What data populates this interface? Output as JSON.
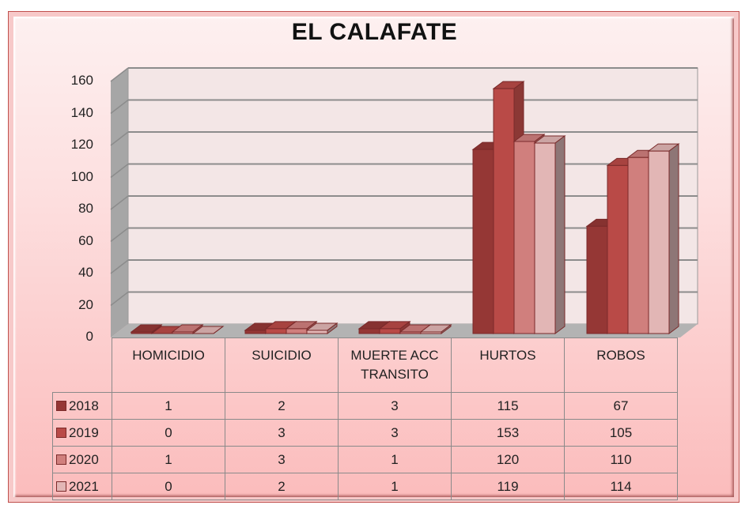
{
  "title": "EL CALAFATE",
  "y_axis": {
    "ticks": [
      "0",
      "20",
      "40",
      "60",
      "80",
      "100",
      "120",
      "140",
      "160"
    ]
  },
  "table": {
    "categories": [
      "HOMICIDIO",
      "SUICIDIO",
      "MUERTE ACC TRANSITO",
      "HURTOS",
      "ROBOS"
    ],
    "category_lines": [
      [
        "HOMICIDIO"
      ],
      [
        "SUICIDIO"
      ],
      [
        "MUERTE ACC",
        "TRANSITO"
      ],
      [
        "HURTOS"
      ],
      [
        "ROBOS"
      ]
    ],
    "rows": [
      {
        "label": "2018",
        "color": "#953735",
        "values": [
          "1",
          "2",
          "3",
          "115",
          "67"
        ]
      },
      {
        "label": "2019",
        "color": "#b94a47",
        "values": [
          "0",
          "3",
          "3",
          "153",
          "105"
        ]
      },
      {
        "label": "2020",
        "color": "#d07f7d",
        "values": [
          "1",
          "3",
          "1",
          "120",
          "110"
        ]
      },
      {
        "label": "2021",
        "color": "#e2b6b5",
        "values": [
          "0",
          "2",
          "1",
          "119",
          "114"
        ]
      }
    ]
  },
  "chart_data": {
    "type": "bar",
    "subtype": "3d-clustered-column-with-data-table",
    "title": "EL CALAFATE",
    "categories": [
      "HOMICIDIO",
      "SUICIDIO",
      "MUERTE ACC TRANSITO",
      "HURTOS",
      "ROBOS"
    ],
    "series": [
      {
        "name": "2018",
        "color": "#953735",
        "values": [
          1,
          2,
          3,
          115,
          67
        ]
      },
      {
        "name": "2019",
        "color": "#b94a47",
        "values": [
          0,
          3,
          3,
          153,
          105
        ]
      },
      {
        "name": "2020",
        "color": "#d07f7d",
        "values": [
          1,
          3,
          1,
          120,
          110
        ]
      },
      {
        "name": "2021",
        "color": "#e2b6b5",
        "values": [
          0,
          2,
          1,
          119,
          114
        ]
      }
    ],
    "xlabel": "",
    "ylabel": "",
    "ylim": [
      0,
      160
    ],
    "yticks": [
      0,
      20,
      40,
      60,
      80,
      100,
      120,
      140,
      160
    ],
    "grid": true,
    "legend_position": "data-table"
  }
}
